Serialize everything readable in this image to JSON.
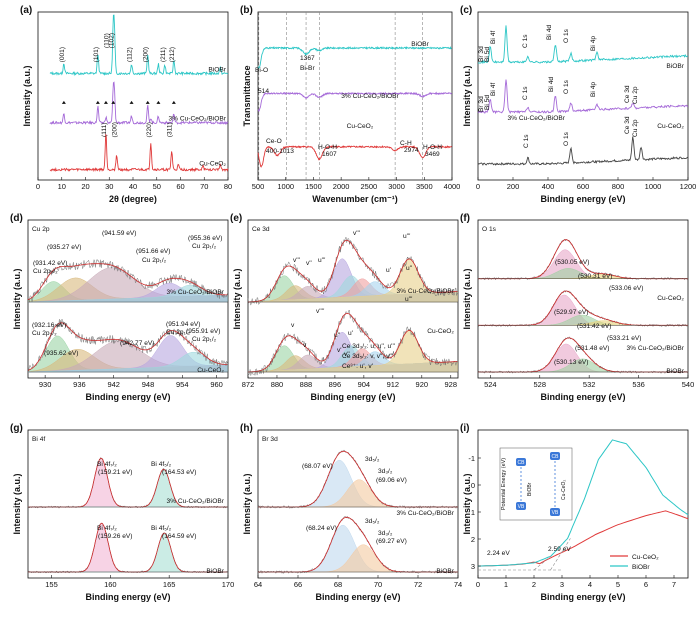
{
  "colors": {
    "cyan": "#2cc6c6",
    "purple": "#a56ad8",
    "red": "#e03a3a",
    "black": "#222222",
    "raw": "#707070",
    "env": "#cc2b2b"
  },
  "chart_data": [
    {
      "panel": "(a)",
      "type": "line",
      "xlabel": "2θ (degree)",
      "ylabel": "Intensity (a.u.)",
      "xlim": [
        0,
        80
      ],
      "xticks": [
        0,
        10,
        20,
        30,
        40,
        50,
        60,
        70,
        80
      ],
      "series": [
        {
          "name": "BiOBr",
          "color": "#2cc6c6",
          "offset": 2.05,
          "peaks": [
            [
              10.9,
              0.22
            ],
            [
              25.2,
              0.42
            ],
            [
              31.7,
              1.0
            ],
            [
              32.2,
              0.78
            ],
            [
              39.4,
              0.2
            ],
            [
              46.2,
              0.42
            ],
            [
              50.7,
              0.2
            ],
            [
              53.4,
              0.18
            ],
            [
              57.2,
              0.28
            ],
            [
              76.7,
              0.12
            ]
          ]
        },
        {
          "name": "3% Cu-CeO₂/BiOBr",
          "color": "#a56ad8",
          "offset": 1.0,
          "peaks": [
            [
              10.9,
              0.2
            ],
            [
              25.2,
              0.35
            ],
            [
              28.6,
              0.12
            ],
            [
              31.7,
              0.68
            ],
            [
              32.2,
              0.55
            ],
            [
              39.4,
              0.15
            ],
            [
              46.2,
              0.38
            ],
            [
              47.5,
              0.1
            ],
            [
              50.7,
              0.14
            ],
            [
              57.2,
              0.2
            ]
          ]
        },
        {
          "name": "Cu-CeO₂",
          "color": "#e03a3a",
          "offset": 0.0,
          "peaks": [
            [
              28.6,
              0.78
            ],
            [
              33.1,
              0.32
            ],
            [
              47.5,
              0.58
            ],
            [
              56.3,
              0.4
            ],
            [
              59.1,
              0.1
            ],
            [
              69.4,
              0.08
            ],
            [
              76.7,
              0.12
            ]
          ]
        }
      ],
      "labels": [
        "(001)",
        "(101)",
        "(102)",
        "(110)",
        "(112)",
        "(200)",
        "(211)",
        "(212)",
        "(111)",
        "(200)",
        "(220)",
        "(311)"
      ],
      "series_labels": [
        "BiOBr",
        "3% Cu-CeO₂/BiOBr",
        "Cu-CeO₂"
      ]
    },
    {
      "panel": "(b)",
      "type": "line",
      "xlabel": "Wavenumber (cm⁻¹)",
      "ylabel": "Transmittance",
      "xlim": [
        500,
        4000
      ],
      "xticks": [
        500,
        1000,
        1500,
        2000,
        2500,
        3000,
        3500,
        4000
      ],
      "series": [
        {
          "name": "BiOBr",
          "color": "#2cc6c6",
          "offset": 2.0,
          "dips": [
            [
              514,
              0.8
            ],
            [
              1367,
              0.25
            ],
            [
              1607,
              0.1
            ]
          ]
        },
        {
          "name": "3% Cu-CeO₂/BiOBr",
          "color": "#a56ad8",
          "offset": 1.08,
          "dips": [
            [
              514,
              0.7
            ],
            [
              1367,
              0.18
            ],
            [
              1607,
              0.15
            ],
            [
              3469,
              0.12
            ]
          ]
        },
        {
          "name": "Cu-CeO₂",
          "color": "#e03a3a",
          "offset": 0.0,
          "dips": [
            [
              560,
              0.8
            ],
            [
              850,
              0.35
            ],
            [
              1607,
              0.5
            ],
            [
              2974,
              0.15
            ],
            [
              3469,
              0.45
            ]
          ]
        }
      ],
      "vlines": [
        514,
        1013,
        1367,
        1607,
        2974,
        3469
      ],
      "labels": [
        "Bi-O",
        "514",
        "1367",
        "Bi-Br",
        "Ce-O",
        "400-1013",
        "H-O-H",
        "1607",
        "C-H",
        "2974",
        "H-O-H",
        "3469"
      ],
      "series_labels": [
        "BiOBr",
        "3% Cu-CeO₂/BiOBr",
        "Cu-CeO₂"
      ]
    },
    {
      "panel": "(c)",
      "type": "line",
      "xlabel": "Binding energy (eV)",
      "ylabel": "Intensity (a.u.)",
      "xlim": [
        0,
        1200
      ],
      "xticks": [
        0,
        200,
        400,
        600,
        800,
        1000,
        1200
      ],
      "series": [
        {
          "name": "BiOBr",
          "color": "#2cc6c6",
          "offset": 2.0,
          "peaks": [
            [
              70,
              0.3
            ],
            [
              160,
              0.7
            ],
            [
              285,
              0.12
            ],
            [
              442,
              0.35
            ],
            [
              531,
              0.15
            ],
            [
              680,
              0.15
            ]
          ]
        },
        {
          "name": "3% Cu-CeO₂/BiOBr",
          "color": "#a56ad8",
          "offset": 1.02,
          "peaks": [
            [
              70,
              0.25
            ],
            [
              160,
              0.65
            ],
            [
              285,
              0.1
            ],
            [
              442,
              0.32
            ],
            [
              531,
              0.16
            ],
            [
              680,
              0.1
            ],
            [
              885,
              0.1
            ]
          ]
        },
        {
          "name": "Cu-CeO₂",
          "color": "#444444",
          "offset": 0.0,
          "peaks": [
            [
              285,
              0.12
            ],
            [
              531,
              0.3
            ],
            [
              885,
              0.45
            ],
            [
              932,
              0.25
            ]
          ]
        }
      ],
      "labels": [
        "Br 3d",
        "Bi 5d",
        "Bi 4f",
        "C 1s",
        "Bi 4d",
        "O 1s",
        "Bi 4p",
        "Br 3d",
        "Bi 5d",
        "Bi 4f",
        "C 1s",
        "Bi 4d",
        "O 1s",
        "Bi 4p",
        "Ce 3d",
        "Cu 2p",
        "C 1s",
        "O 1s",
        "Ce 3d",
        "Cu 2p"
      ],
      "series_labels": [
        "BiOBr",
        "3% Cu-CeO₂/BiOBr",
        "Cu-CeO₂"
      ]
    },
    {
      "panel": "(d)",
      "title": "Cu 2p",
      "type": "line",
      "xlabel": "Binding energy (eV)",
      "ylabel": "Intensity (a.u.)",
      "xlim": [
        927,
        962
      ],
      "xticks": [
        930,
        936,
        942,
        948,
        954,
        960
      ],
      "series": [
        {
          "name": "3% Cu-CeO₂/BiOBr",
          "offset": 1.0,
          "components": [
            [
              931.42,
              2.0,
              0.28
            ],
            [
              935.27,
              3.0,
              0.32
            ],
            [
              941.59,
              4.0,
              0.45
            ],
            [
              951.66,
              2.2,
              0.2
            ],
            [
              955.36,
              2.2,
              0.16
            ]
          ]
        },
        {
          "name": "Cu-CeO₂",
          "offset": 0.0,
          "components": [
            [
              932.16,
              2.0,
              0.5
            ],
            [
              935.62,
              3.0,
              0.3
            ],
            [
              942.77,
              4.0,
              0.4
            ],
            [
              951.94,
              2.2,
              0.45
            ],
            [
              955.91,
              2.2,
              0.2
            ]
          ]
        }
      ],
      "labels": [
        "(931.42 eV)",
        "Cu 2p₃/₂",
        "(935.27 eV)",
        "(941.59 eV)",
        "(951.66 eV)",
        "Cu 2p₁/₂",
        "(955.36 eV)",
        "Cu 2p₁/₂",
        "(932.16 eV)",
        "Cu 2p₃/₂",
        "(935.62 eV)",
        "(942.77 eV)",
        "(951.94 eV)",
        "Cu 2p₁/₂",
        "(955.91 eV)",
        "Cu 2p₁/₂"
      ],
      "series_labels": [
        "3% Cu-CeO₂/BiOBr",
        "Cu-CeO₂"
      ]
    },
    {
      "panel": "(e)",
      "title": "Ce 3d",
      "type": "line",
      "xlabel": "Binding energy (eV)",
      "ylabel": "Intensity (a.u.)",
      "xlim": [
        872,
        930
      ],
      "xticks": [
        872,
        880,
        888,
        896,
        904,
        912,
        920,
        928
      ],
      "series": [
        {
          "name": "3% Cu-CeO₂/BiOBr",
          "offset": 1.0,
          "components": [
            [
              882,
              2.5,
              0.35
            ],
            [
              885,
              2.5,
              0.2
            ],
            [
              888.5,
              2.5,
              0.18
            ],
            [
              898,
              2.5,
              0.55
            ],
            [
              900.5,
              2.5,
              0.3
            ],
            [
              903.5,
              2.5,
              0.25
            ],
            [
              907,
              2.5,
              0.2
            ],
            [
              916.5,
              2.5,
              0.5
            ]
          ]
        },
        {
          "name": "Cu-CeO₂",
          "offset": 0.0,
          "components": [
            [
              882,
              2.5,
              0.35
            ],
            [
              885,
              2.5,
              0.2
            ],
            [
              888.5,
              2.5,
              0.2
            ],
            [
              898,
              2.5,
              0.5
            ],
            [
              900.5,
              2.5,
              0.3
            ],
            [
              903.5,
              2.5,
              0.25
            ],
            [
              907,
              2.5,
              0.2
            ],
            [
              916.5,
              2.5,
              0.48
            ]
          ]
        }
      ],
      "labels": [
        "v'''",
        "v''",
        "u'''",
        "u'",
        "u''",
        "v",
        "v'",
        "v''",
        "v''''",
        "v",
        "u''",
        "u'",
        "v'''",
        "u'''",
        "u'''"
      ],
      "series_labels": [
        "3% Cu-CeO₂/BiOBr",
        "Cu-CeO₂"
      ],
      "legend_text": [
        "Ce 3d₃/₂:  u, u'', u'''",
        "Ce 3d₅/₂:  v, v'', v'''",
        "Ce³⁺:  u', v'"
      ]
    },
    {
      "panel": "(f)",
      "title": "O 1s",
      "type": "line",
      "xlabel": "Binding energy (eV)",
      "ylabel": "Intensity (a.u.)",
      "xlim": [
        523,
        540
      ],
      "xticks": [
        524,
        528,
        532,
        536,
        540
      ],
      "series": [
        {
          "name": "Cu-CeO₂",
          "offset": 2.0,
          "components": [
            [
              530.05,
              0.9,
              0.62
            ],
            [
              530.31,
              1.0,
              0.22
            ],
            [
              533.06,
              1.0,
              0.1
            ]
          ]
        },
        {
          "name": "3% Cu-CeO₂/BiOBr",
          "offset": 1.0,
          "components": [
            [
              529.97,
              0.9,
              0.65
            ],
            [
              531.42,
              1.0,
              0.22
            ],
            [
              533.21,
              1.0,
              0.1
            ]
          ]
        },
        {
          "name": "BiOBr",
          "offset": 0.0,
          "components": [
            [
              530.13,
              0.9,
              0.6
            ],
            [
              531.48,
              1.0,
              0.28
            ]
          ]
        }
      ],
      "labels": [
        "(530.05 eV)",
        "(530.31 eV)",
        "(533.06 eV)",
        "(529.97 eV)",
        "(531.42 eV)",
        "(533.21 eV)",
        "(530.13 eV)",
        "(531.48 eV)"
      ],
      "series_labels": [
        "Cu-CeO₂",
        "3% Cu-CeO₂/BiOBr",
        "BiOBr"
      ]
    },
    {
      "panel": "(g)",
      "title": "Bi 4f",
      "type": "line",
      "xlabel": "Binding energy (eV)",
      "ylabel": "Intensity (a.u.)",
      "xlim": [
        153,
        170
      ],
      "xticks": [
        155,
        160,
        165,
        170
      ],
      "series": [
        {
          "name": "3% Cu-CeO₂/BiOBr",
          "offset": 1.0,
          "components": [
            [
              159.21,
              0.55,
              0.75
            ],
            [
              164.53,
              0.55,
              0.58
            ]
          ]
        },
        {
          "name": "BiOBr",
          "offset": 0.0,
          "components": [
            [
              159.26,
              0.55,
              0.75
            ],
            [
              164.59,
              0.55,
              0.6
            ]
          ]
        }
      ],
      "labels": [
        "Bi 4f₇/₂",
        "(159.21 eV)",
        "Bi 4f₅/₂",
        "(164.53 eV)",
        "Bi 4f₇/₂",
        "(159.26 eV)",
        "Bi 4f₅/₂",
        "(164.59 eV)"
      ],
      "series_labels": [
        "3% Cu-CeO₂/BiOBr",
        "BiOBr"
      ]
    },
    {
      "panel": "(h)",
      "title": "Br 3d",
      "type": "line",
      "xlabel": "Binding energy (eV)",
      "ylabel": "Intensity (a.u.)",
      "xlim": [
        64,
        74
      ],
      "xticks": [
        64,
        66,
        68,
        70,
        72,
        74
      ],
      "series": [
        {
          "name": "3% Cu-CeO₂/BiOBr",
          "offset": 1.0,
          "components": [
            [
              68.07,
              0.6,
              0.72
            ],
            [
              69.06,
              0.6,
              0.42
            ]
          ]
        },
        {
          "name": "BiOBr",
          "offset": 0.0,
          "components": [
            [
              68.24,
              0.6,
              0.72
            ],
            [
              69.27,
              0.6,
              0.42
            ]
          ]
        }
      ],
      "labels": [
        "3d₅/₂",
        "(68.07 eV)",
        "3d₃/₂",
        "(69.06 eV)",
        "3d₅/₂",
        "(68.24 eV)",
        "3d₃/₂",
        "(69.27 eV)"
      ],
      "series_labels": [
        "3% Cu-CeO₂/BiOBr",
        "BiOBr"
      ]
    },
    {
      "panel": "(i)",
      "type": "line",
      "xlabel": "Binding energy (eV)",
      "ylabel": "Intensity (a.u.)",
      "xlim": [
        0,
        7.5
      ],
      "xticks": [
        0,
        1,
        2,
        3,
        4,
        5,
        6,
        7
      ],
      "y2label": "Potential Energy (eV)",
      "y2ticks": [
        "-1",
        "0",
        "1",
        "2",
        "3"
      ],
      "series": [
        {
          "name": "Cu-CeO₂",
          "color": "#e03a3a",
          "points": [
            [
              0,
              0.1
            ],
            [
              1.0,
              0.12
            ],
            [
              1.6,
              0.15
            ],
            [
              2.0,
              0.2
            ],
            [
              2.2,
              0.16
            ],
            [
              2.4,
              0.24
            ],
            [
              2.8,
              0.38
            ],
            [
              3.4,
              0.58
            ],
            [
              4.2,
              0.9
            ],
            [
              5.0,
              1.15
            ],
            [
              6.0,
              1.38
            ],
            [
              6.7,
              1.5
            ],
            [
              7.2,
              1.38
            ],
            [
              7.5,
              1.3
            ]
          ]
        },
        {
          "name": "BiOBr",
          "color": "#2cc6c6",
          "points": [
            [
              0,
              0.1
            ],
            [
              1.0,
              0.12
            ],
            [
              2.0,
              0.18
            ],
            [
              2.6,
              0.35
            ],
            [
              3.2,
              0.8
            ],
            [
              3.8,
              1.8
            ],
            [
              4.3,
              2.8
            ],
            [
              4.8,
              3.3
            ],
            [
              5.3,
              3.2
            ],
            [
              6.0,
              2.6
            ],
            [
              6.6,
              1.9
            ],
            [
              7.2,
              1.55
            ],
            [
              7.5,
              1.4
            ]
          ]
        }
      ],
      "labels": [
        "2.24 eV",
        "2.59 eV",
        "CB",
        "VB",
        "CB",
        "VB",
        "BiOBr",
        "Cu-CeO₂"
      ],
      "series_labels": [
        "Cu-CeO₂",
        "BiOBr"
      ]
    }
  ]
}
